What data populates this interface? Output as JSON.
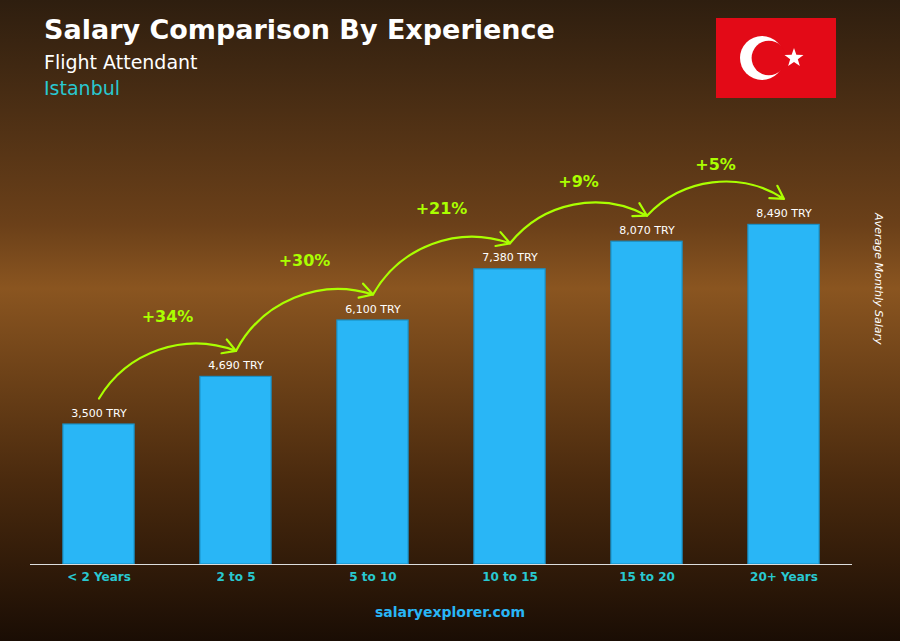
{
  "chart_data": {
    "type": "bar",
    "title": "Salary Comparison By Experience",
    "subtitle": "Flight Attendant",
    "ylabel": "Average Monthly Salary",
    "categories": [
      "< 2 Years",
      "2 to 5",
      "5 to 10",
      "10 to 15",
      "15 to 20",
      "20+ Years"
    ],
    "values": [
      3500,
      4690,
      6100,
      7380,
      8070,
      8490
    ],
    "value_labels": [
      "3,500 TRY",
      "4,690 TRY",
      "6,100 TRY",
      "7,380 TRY",
      "8,070 TRY",
      "8,490 TRY"
    ],
    "data_labels": true,
    "color": "#29b6f6",
    "ylim": [
      0,
      11000
    ],
    "tick_labels": "x",
    "grid": false,
    "annotations": [
      {
        "text": "Istanbul"
      },
      {
        "text": "+34%",
        "between": [
          "< 2 Years",
          "2 to 5"
        ]
      },
      {
        "text": "+30%",
        "between": [
          "2 to 5",
          "5 to 10"
        ]
      },
      {
        "text": "+21%",
        "between": [
          "5 to 10",
          "10 to 15"
        ]
      },
      {
        "text": "+9%",
        "between": [
          "10 to 15",
          "15 to 20"
        ]
      },
      {
        "text": "+5%",
        "between": [
          "15 to 20",
          "20+ Years"
        ]
      },
      {
        "text": "salaryexplorer.com"
      }
    ]
  }
}
